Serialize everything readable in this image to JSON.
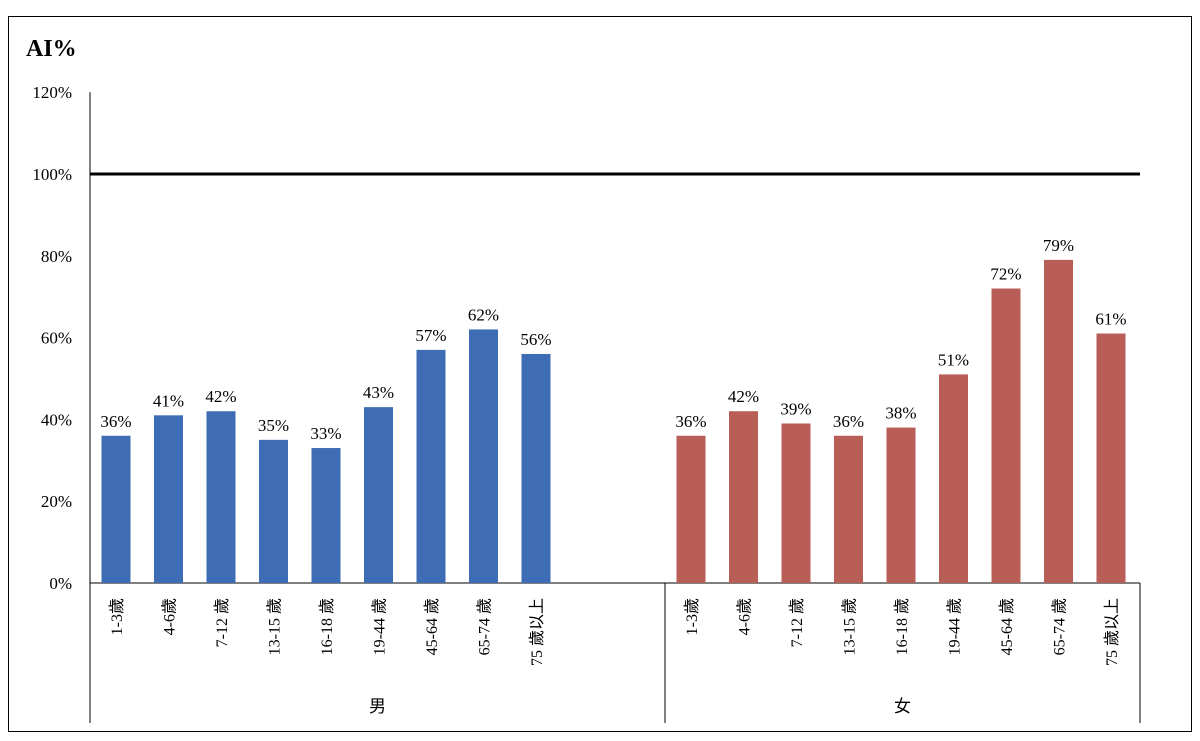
{
  "chart_data": {
    "type": "bar",
    "ylabel": "AI%",
    "ylim": [
      0,
      120
    ],
    "yticks": [
      0,
      20,
      40,
      60,
      80,
      100,
      120
    ],
    "ytick_labels": [
      "0%",
      "20%",
      "40%",
      "60%",
      "80%",
      "100%",
      "120%"
    ],
    "value_suffix": "%",
    "reference_line": 100,
    "grid": false,
    "groups": [
      {
        "name": "男",
        "color": "#3F6DB5",
        "categories": [
          "1-3歲",
          "4-6歲",
          "7-12 歲",
          "13-15 歲",
          "16-18 歲",
          "19-44 歲",
          "45-64 歲",
          "65-74 歲",
          "75 歲以上"
        ],
        "values": [
          36,
          41,
          42,
          35,
          33,
          43,
          57,
          62,
          56
        ]
      },
      {
        "name": "女",
        "color": "#B85E57",
        "categories": [
          "1-3歲",
          "4-6歲",
          "7-12 歲",
          "13-15 歲",
          "16-18 歲",
          "19-44 歲",
          "45-64 歲",
          "65-74 歲",
          "75 歲以上"
        ],
        "values": [
          36,
          42,
          39,
          36,
          38,
          51,
          72,
          79,
          61
        ]
      }
    ]
  }
}
